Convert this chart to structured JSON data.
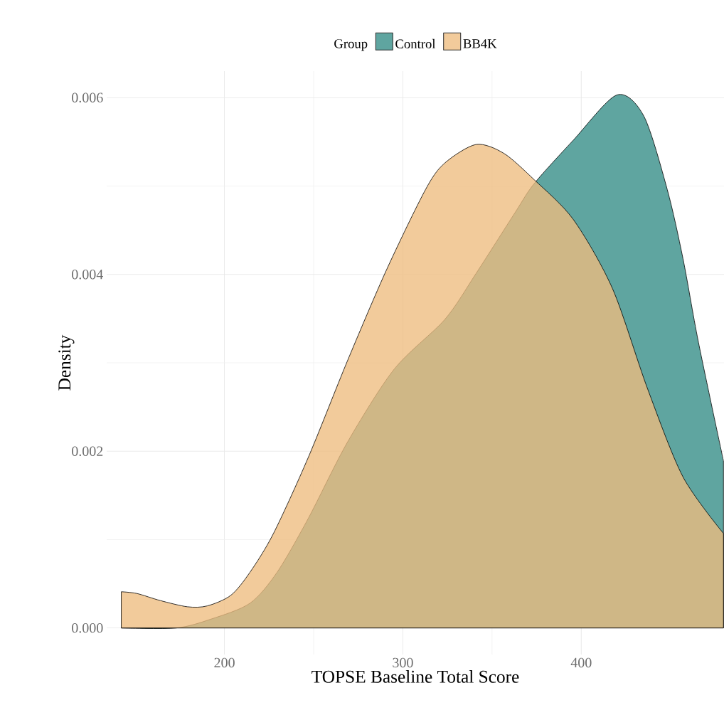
{
  "chart_data": {
    "type": "area",
    "xlabel": "TOPSE Baseline Total Score",
    "ylabel": "Density",
    "legend_title": "Group",
    "legend": "top",
    "xlim": [
      134,
      480
    ],
    "ylim": [
      -0.0003,
      0.0063
    ],
    "xticks": [
      200,
      300,
      400
    ],
    "yticks": [
      {
        "value": 0,
        "label": "0.000"
      },
      {
        "value": 0.002,
        "label": "0.002"
      },
      {
        "value": 0.004,
        "label": "0.004"
      },
      {
        "value": 0.006,
        "label": "0.006"
      }
    ],
    "grid": true,
    "series": [
      {
        "name": "Control",
        "color": "#5fa5a0",
        "x": [
          142.2,
          172.9,
          192.4,
          214.3,
          229.5,
          247.0,
          268.9,
          295.2,
          323.5,
          341.0,
          362.9,
          373.7,
          395.6,
          419.9,
          435.1,
          448.2,
          457.0,
          465.7,
          479.7
        ],
        "values": [
          0,
          0,
          0.0001,
          0.00028,
          0.00063,
          0.00124,
          0.0021,
          0.00293,
          0.00349,
          0.00401,
          0.0047,
          0.00503,
          0.00552,
          0.00603,
          0.00579,
          0.00496,
          0.00418,
          0.00323,
          0.00189
        ]
      },
      {
        "name": "BB4K",
        "color": "#eebd7f",
        "x": [
          142.2,
          151.0,
          164.1,
          179.3,
          190.4,
          203.6,
          214.3,
          227.5,
          247.0,
          268.9,
          290.8,
          312.7,
          323.5,
          341.0,
          356.6,
          373.7,
          395.6,
          417.5,
          437.1,
          457.0,
          479.7
        ],
        "values": [
          0.00041,
          0.00039,
          0.00031,
          0.00024,
          0.00025,
          0.00037,
          0.00063,
          0.00107,
          0.00193,
          0.00302,
          0.00405,
          0.00496,
          0.00526,
          0.00547,
          0.00537,
          0.00507,
          0.00462,
          0.00384,
          0.00271,
          0.00171,
          0.00107
        ]
      }
    ]
  }
}
